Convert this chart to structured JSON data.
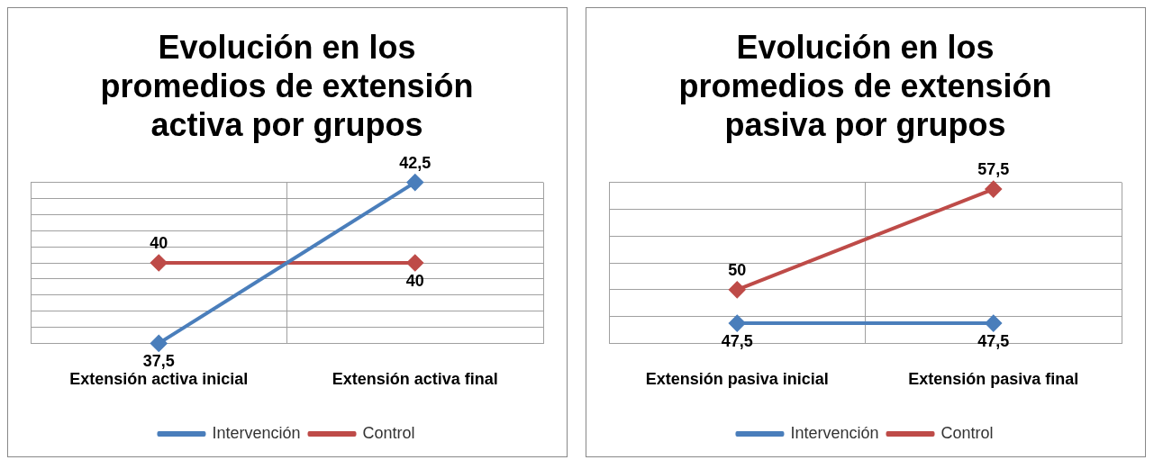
{
  "chart_data": [
    {
      "type": "line",
      "title": "Evolución en los promedios de extensión activa por grupos",
      "categories": [
        "Extensión activa inicial",
        "Extensión activa final"
      ],
      "series": [
        {
          "name": "Intervención",
          "color": "#4a7ebb",
          "values": [
            37.5,
            42.5
          ],
          "value_labels": [
            "37,5",
            "42,5"
          ]
        },
        {
          "name": "Control",
          "color": "#be4b48",
          "values": [
            40,
            40
          ],
          "value_labels": [
            "40",
            "40"
          ]
        }
      ],
      "tick_labels": "x",
      "grid": true,
      "legend": "bottom",
      "marker": "diamond"
    },
    {
      "type": "line",
      "title": "Evolución en los promedios de extensión pasiva por grupos",
      "categories": [
        "Extensión pasiva inicial",
        "Extensión pasiva final"
      ],
      "series": [
        {
          "name": "Intervención",
          "color": "#4a7ebb",
          "values": [
            47.5,
            47.5
          ],
          "value_labels": [
            "47,5",
            "47,5"
          ]
        },
        {
          "name": "Control",
          "color": "#be4b48",
          "values": [
            50,
            57.5
          ],
          "value_labels": [
            "50",
            "57,5"
          ]
        }
      ],
      "tick_labels": "x",
      "grid": true,
      "legend": "bottom",
      "marker": "diamond"
    }
  ]
}
